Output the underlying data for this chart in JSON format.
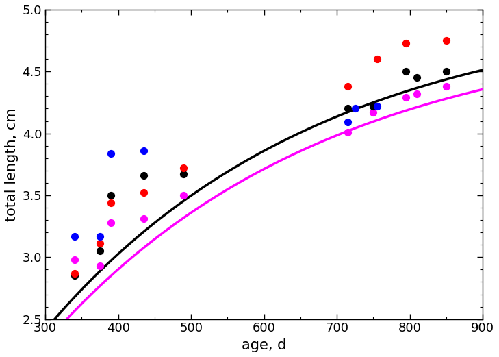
{
  "title": "",
  "xlabel": "age, d",
  "ylabel": "total length, cm",
  "xlim": [
    300,
    900
  ],
  "ylim": [
    2.5,
    5.0
  ],
  "xticks": [
    300,
    400,
    500,
    600,
    700,
    800,
    900
  ],
  "yticks": [
    2.5,
    3.0,
    3.5,
    4.0,
    4.5,
    5.0
  ],
  "scatter_blue": [
    [
      340,
      3.17
    ],
    [
      375,
      3.17
    ],
    [
      390,
      3.84
    ],
    [
      435,
      3.86
    ],
    [
      715,
      4.09
    ],
    [
      725,
      4.2
    ],
    [
      755,
      4.22
    ]
  ],
  "scatter_red": [
    [
      340,
      2.87
    ],
    [
      375,
      3.11
    ],
    [
      390,
      3.44
    ],
    [
      435,
      3.52
    ],
    [
      490,
      3.72
    ],
    [
      715,
      4.38
    ],
    [
      755,
      4.6
    ],
    [
      795,
      4.73
    ],
    [
      850,
      4.75
    ]
  ],
  "scatter_black": [
    [
      340,
      2.85
    ],
    [
      375,
      3.05
    ],
    [
      390,
      3.5
    ],
    [
      435,
      3.66
    ],
    [
      490,
      3.67
    ],
    [
      715,
      4.2
    ],
    [
      750,
      4.22
    ],
    [
      795,
      4.5
    ],
    [
      810,
      4.45
    ],
    [
      850,
      4.5
    ]
  ],
  "scatter_magenta": [
    [
      340,
      2.98
    ],
    [
      375,
      2.93
    ],
    [
      390,
      3.28
    ],
    [
      435,
      3.31
    ],
    [
      490,
      3.5
    ],
    [
      715,
      4.01
    ],
    [
      750,
      4.17
    ],
    [
      795,
      4.29
    ],
    [
      810,
      4.32
    ],
    [
      850,
      4.38
    ]
  ],
  "curve_black_color": "#000000",
  "curve_magenta_color": "#FF00FF",
  "scatter_blue_color": "#0000FF",
  "scatter_red_color": "#FF0000",
  "scatter_black_color": "#000000",
  "scatter_magenta_color": "#FF00FF",
  "black_Linf": 5.2,
  "black_k": 0.003,
  "black_t0": 70.0,
  "magenta_Linf": 4.9,
  "magenta_k": 0.0028,
  "magenta_t0": 40.0,
  "curve_linewidth": 2.5,
  "scatter_size": 65,
  "background_color": "#FFFFFF",
  "tick_label_fontsize": 13,
  "axis_label_fontsize": 15
}
